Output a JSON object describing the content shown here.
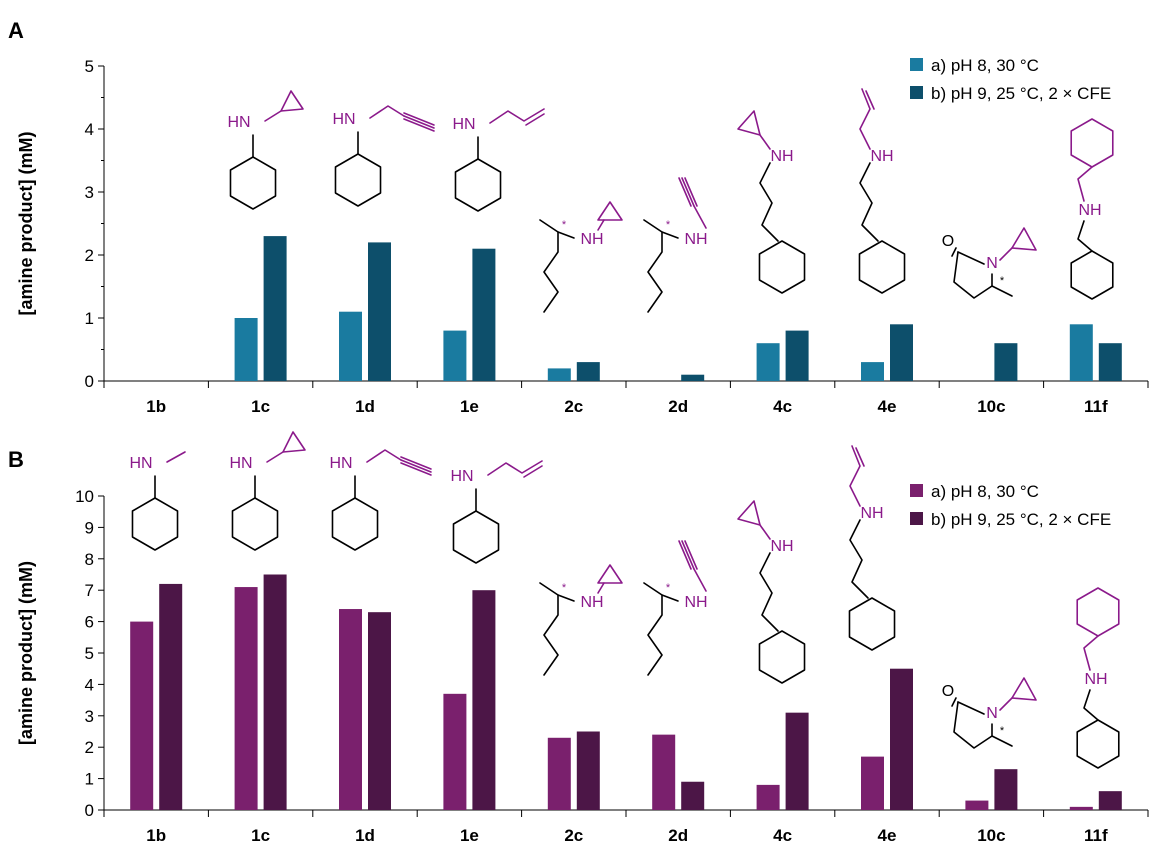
{
  "chart_data": [
    {
      "panel": "A",
      "type": "bar",
      "categories": [
        "1b",
        "1c",
        "1d",
        "1e",
        "2c",
        "2d",
        "4c",
        "4e",
        "10c",
        "11f"
      ],
      "ylabel": "[amine product] (mM)",
      "xlabel": "",
      "ylim": [
        0,
        5
      ],
      "yticks": [
        0,
        1,
        2,
        3,
        4,
        5
      ],
      "grid": false,
      "legend": "top-right",
      "series": [
        {
          "name": "a) pH 8, 30 °C",
          "color": "#1a7ba0",
          "values": [
            0,
            1.0,
            1.1,
            0.8,
            0.2,
            0,
            0.6,
            0.3,
            0,
            0.9
          ]
        },
        {
          "name": "b) pH 9, 25 °C, 2 × CFE",
          "color": "#0d4f6b",
          "values": [
            0,
            2.3,
            2.2,
            2.1,
            0.3,
            0.1,
            0.8,
            0.9,
            0.6,
            0.6
          ]
        }
      ]
    },
    {
      "panel": "B",
      "type": "bar",
      "categories": [
        "1b",
        "1c",
        "1d",
        "1e",
        "2c",
        "2d",
        "4c",
        "4e",
        "10c",
        "11f"
      ],
      "ylabel": "[amine product] (mM)",
      "xlabel": "",
      "ylim": [
        0,
        10
      ],
      "yticks": [
        0,
        1,
        2,
        3,
        4,
        5,
        6,
        7,
        8,
        9,
        10
      ],
      "grid": false,
      "legend": "top-right",
      "series": [
        {
          "name": "a) pH 8, 30 °C",
          "color": "#7a206d",
          "values": [
            6.0,
            7.1,
            6.4,
            3.7,
            2.3,
            2.4,
            0.8,
            1.7,
            0.3,
            0.1
          ]
        },
        {
          "name": "b) pH 9, 25 °C, 2 × CFE",
          "color": "#4c1647",
          "values": [
            7.2,
            7.5,
            6.3,
            7.0,
            2.5,
            0.9,
            3.1,
            4.5,
            1.3,
            0.6
          ]
        }
      ]
    }
  ],
  "structure_labels": {
    "hn": "HN",
    "nh": "NH",
    "n": "N",
    "o": "O",
    "star": "*"
  },
  "colors": {
    "structure_black": "#000000",
    "structure_purple": "#8b1a8b"
  }
}
